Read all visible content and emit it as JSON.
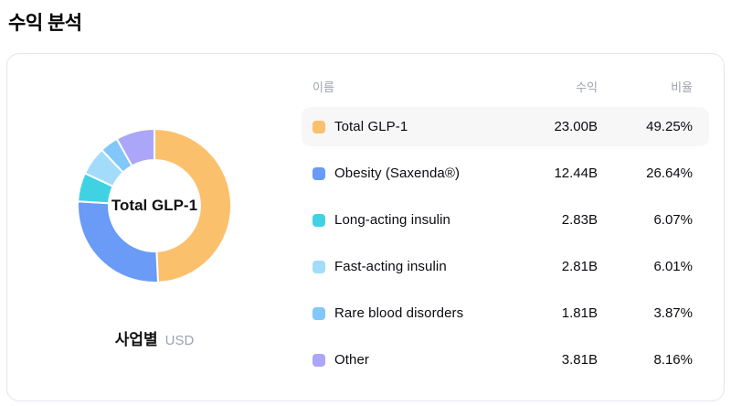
{
  "page": {
    "title": "수익 분석"
  },
  "chart_data": {
    "type": "pie",
    "donut": true,
    "center_label": "Total GLP-1",
    "caption": "사업별",
    "caption_unit": "USD",
    "legend_position": "right-table",
    "start_angle_deg": -90,
    "direction": "clockwise",
    "categories": [
      "Total GLP-1",
      "Obesity (Saxenda®)",
      "Long-acting insulin",
      "Fast-acting insulin",
      "Rare blood disorders",
      "Other"
    ],
    "revenues": [
      "23.00B",
      "12.44B",
      "2.83B",
      "2.81B",
      "1.81B",
      "3.81B"
    ],
    "percentages": [
      49.25,
      26.64,
      6.07,
      6.01,
      3.87,
      8.16
    ],
    "colors": [
      "#FBC06C",
      "#699BF7",
      "#40D2E2",
      "#A2DCFA",
      "#81C7F9",
      "#ABA6F7"
    ]
  },
  "table": {
    "headers": {
      "name": "이름",
      "revenue": "수익",
      "ratio": "비율"
    },
    "rows": [
      {
        "name": "Total GLP-1",
        "revenue": "23.00B",
        "ratio": "49.25%",
        "color": "#FBC06C",
        "highlighted": true
      },
      {
        "name": "Obesity (Saxenda®)",
        "revenue": "12.44B",
        "ratio": "26.64%",
        "color": "#699BF7",
        "highlighted": false
      },
      {
        "name": "Long-acting insulin",
        "revenue": "2.83B",
        "ratio": "6.07%",
        "color": "#40D2E2",
        "highlighted": false
      },
      {
        "name": "Fast-acting insulin",
        "revenue": "2.81B",
        "ratio": "6.01%",
        "color": "#A2DCFA",
        "highlighted": false
      },
      {
        "name": "Rare blood disorders",
        "revenue": "1.81B",
        "ratio": "3.87%",
        "color": "#81C7F9",
        "highlighted": false
      },
      {
        "name": "Other",
        "revenue": "3.81B",
        "ratio": "8.16%",
        "color": "#ABA6F7",
        "highlighted": false
      }
    ]
  }
}
